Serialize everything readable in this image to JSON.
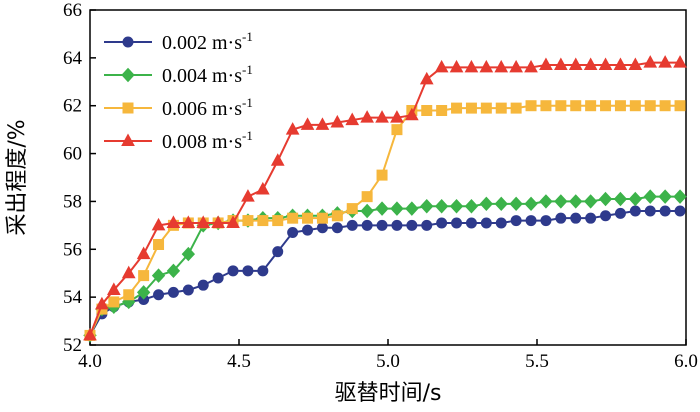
{
  "chart_data": {
    "type": "line",
    "xlabel": "驱替时间/s",
    "ylabel": "采出程度/%",
    "xlim": [
      4.0,
      6.0
    ],
    "ylim": [
      52,
      66
    ],
    "xticks": [
      "4.0",
      "4.5",
      "5.0",
      "5.5",
      "6.0"
    ],
    "yticks": [
      "52",
      "54",
      "56",
      "58",
      "60",
      "62",
      "64",
      "66"
    ],
    "grid": false,
    "legend_position": "top-left",
    "series": [
      {
        "name": "0.002 m·s",
        "superscript": "-1",
        "color": "#2e3a8c",
        "marker": "circle",
        "x": [
          4.0,
          4.04,
          4.08,
          4.13,
          4.18,
          4.23,
          4.28,
          4.33,
          4.38,
          4.43,
          4.48,
          4.53,
          4.58,
          4.63,
          4.68,
          4.73,
          4.78,
          4.83,
          4.88,
          4.93,
          4.98,
          5.03,
          5.08,
          5.13,
          5.18,
          5.23,
          5.28,
          5.33,
          5.38,
          5.43,
          5.48,
          5.53,
          5.58,
          5.63,
          5.68,
          5.73,
          5.78,
          5.83,
          5.88,
          5.93,
          5.98
        ],
        "y": [
          52.4,
          53.3,
          53.6,
          53.8,
          53.9,
          54.1,
          54.2,
          54.3,
          54.5,
          54.8,
          55.1,
          55.1,
          55.1,
          55.9,
          56.7,
          56.8,
          56.9,
          56.9,
          57.0,
          57.0,
          57.0,
          57.0,
          57.0,
          57.0,
          57.1,
          57.1,
          57.1,
          57.1,
          57.1,
          57.2,
          57.2,
          57.2,
          57.3,
          57.3,
          57.3,
          57.4,
          57.5,
          57.6,
          57.6,
          57.6,
          57.6
        ]
      },
      {
        "name": "0.004 m·s",
        "superscript": "-1",
        "color": "#3cb34a",
        "marker": "diamond",
        "x": [
          4.0,
          4.04,
          4.08,
          4.13,
          4.18,
          4.23,
          4.28,
          4.33,
          4.38,
          4.43,
          4.48,
          4.53,
          4.58,
          4.63,
          4.68,
          4.73,
          4.78,
          4.83,
          4.88,
          4.93,
          4.98,
          5.03,
          5.08,
          5.13,
          5.18,
          5.23,
          5.28,
          5.33,
          5.38,
          5.43,
          5.48,
          5.53,
          5.58,
          5.63,
          5.68,
          5.73,
          5.78,
          5.83,
          5.88,
          5.93,
          5.98
        ],
        "y": [
          52.4,
          53.5,
          53.6,
          53.8,
          54.2,
          54.9,
          55.1,
          55.8,
          57.0,
          57.1,
          57.2,
          57.2,
          57.3,
          57.3,
          57.4,
          57.4,
          57.4,
          57.5,
          57.6,
          57.6,
          57.7,
          57.7,
          57.7,
          57.8,
          57.8,
          57.8,
          57.8,
          57.9,
          57.9,
          57.9,
          57.9,
          58.0,
          58.0,
          58.0,
          58.0,
          58.1,
          58.1,
          58.1,
          58.2,
          58.2,
          58.2
        ]
      },
      {
        "name": "0.006 m·s",
        "superscript": "-1",
        "color": "#f6b73c",
        "marker": "square",
        "x": [
          4.0,
          4.04,
          4.08,
          4.13,
          4.18,
          4.23,
          4.28,
          4.33,
          4.38,
          4.43,
          4.48,
          4.53,
          4.58,
          4.63,
          4.68,
          4.73,
          4.78,
          4.83,
          4.88,
          4.93,
          4.98,
          5.03,
          5.08,
          5.13,
          5.18,
          5.23,
          5.28,
          5.33,
          5.38,
          5.43,
          5.48,
          5.53,
          5.58,
          5.63,
          5.68,
          5.73,
          5.78,
          5.83,
          5.88,
          5.93,
          5.98
        ],
        "y": [
          52.4,
          53.5,
          53.8,
          54.1,
          54.9,
          56.2,
          57.0,
          57.1,
          57.1,
          57.1,
          57.2,
          57.2,
          57.2,
          57.2,
          57.3,
          57.3,
          57.3,
          57.4,
          57.7,
          58.2,
          59.1,
          61.0,
          61.8,
          61.8,
          61.8,
          61.9,
          61.9,
          61.9,
          61.9,
          61.9,
          62.0,
          62.0,
          62.0,
          62.0,
          62.0,
          62.0,
          62.0,
          62.0,
          62.0,
          62.0,
          62.0
        ]
      },
      {
        "name": "0.008 m·s",
        "superscript": "-1",
        "color": "#e63b30",
        "marker": "triangle",
        "x": [
          4.0,
          4.04,
          4.08,
          4.13,
          4.18,
          4.23,
          4.28,
          4.33,
          4.38,
          4.43,
          4.48,
          4.53,
          4.58,
          4.63,
          4.68,
          4.73,
          4.78,
          4.83,
          4.88,
          4.93,
          4.98,
          5.03,
          5.08,
          5.13,
          5.18,
          5.23,
          5.28,
          5.33,
          5.38,
          5.43,
          5.48,
          5.53,
          5.58,
          5.63,
          5.68,
          5.73,
          5.78,
          5.83,
          5.88,
          5.93,
          5.98
        ],
        "y": [
          52.4,
          53.7,
          54.3,
          55.0,
          55.8,
          57.0,
          57.1,
          57.1,
          57.1,
          57.1,
          57.1,
          58.2,
          58.5,
          59.7,
          61.0,
          61.2,
          61.2,
          61.3,
          61.4,
          61.5,
          61.5,
          61.5,
          61.6,
          63.1,
          63.6,
          63.6,
          63.6,
          63.6,
          63.6,
          63.6,
          63.6,
          63.7,
          63.7,
          63.7,
          63.7,
          63.7,
          63.7,
          63.7,
          63.8,
          63.8,
          63.8
        ]
      }
    ]
  }
}
